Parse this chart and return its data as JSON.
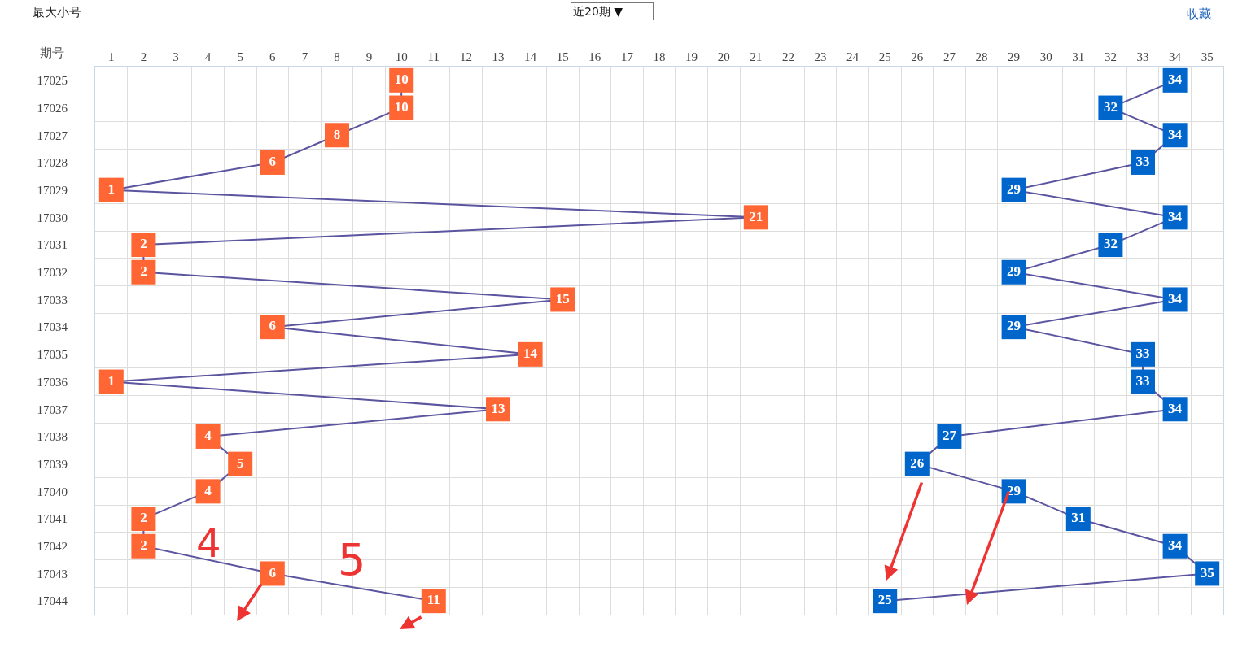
{
  "chart_data": {
    "type": "line",
    "title": "最大小号",
    "ylabel": "期号",
    "orientation": "horizontal",
    "categories": [
      "17025",
      "17026",
      "17027",
      "17028",
      "17029",
      "17030",
      "17031",
      "17032",
      "17033",
      "17034",
      "17035",
      "17036",
      "17037",
      "17038",
      "17039",
      "17040",
      "17041",
      "17042",
      "17043",
      "17044"
    ],
    "series": [
      {
        "color": "#ff6633",
        "values": [
          10,
          10,
          8,
          6,
          1,
          21,
          2,
          2,
          15,
          6,
          14,
          1,
          13,
          4,
          5,
          4,
          2,
          2,
          6,
          11
        ]
      },
      {
        "color": "#0066cc",
        "values": [
          34,
          32,
          34,
          33,
          29,
          34,
          32,
          29,
          34,
          29,
          33,
          33,
          34,
          27,
          26,
          29,
          31,
          34,
          35,
          25
        ]
      }
    ],
    "xlim": [
      0.5,
      35.5
    ],
    "xticks": [
      1,
      2,
      3,
      4,
      5,
      6,
      7,
      8,
      9,
      10,
      11,
      12,
      13,
      14,
      15,
      16,
      17,
      18,
      19,
      20,
      21,
      22,
      23,
      24,
      25,
      26,
      27,
      28,
      29,
      30,
      31,
      32,
      33,
      34,
      35
    ],
    "grid": true,
    "marker": "square",
    "line_style": "solid",
    "data_labels": true,
    "annotations": [
      "近20期 ▼",
      "收藏",
      "4",
      "5"
    ]
  }
}
